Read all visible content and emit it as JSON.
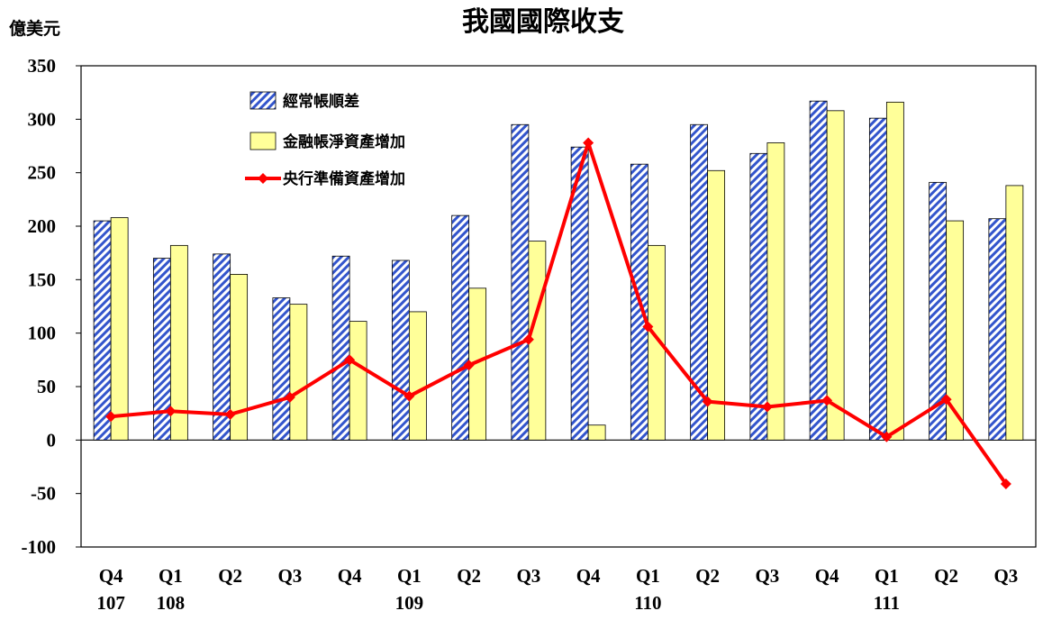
{
  "chart_data": {
    "type": "bar",
    "title": "我國國際收支",
    "unit_label": "億美元",
    "ylim": [
      -100,
      350
    ],
    "yticks": [
      350,
      300,
      250,
      200,
      150,
      100,
      50,
      0,
      -50,
      -100
    ],
    "categories": [
      "Q4",
      "Q1",
      "Q2",
      "Q3",
      "Q4",
      "Q1",
      "Q2",
      "Q3",
      "Q4",
      "Q1",
      "Q2",
      "Q3",
      "Q4",
      "Q1",
      "Q2",
      "Q3"
    ],
    "year_labels": [
      "107",
      "108",
      "",
      "",
      "",
      "109",
      "",
      "",
      "",
      "110",
      "",
      "",
      "",
      "111",
      "",
      ""
    ],
    "legend_position": "top-left",
    "grid": false,
    "series": [
      {
        "name": "經常帳順差",
        "kind": "bar",
        "pattern": "hatched",
        "color": "#3355cc",
        "values": [
          205,
          170,
          174,
          133,
          172,
          168,
          210,
          295,
          274,
          258,
          295,
          268,
          317,
          301,
          241,
          207
        ]
      },
      {
        "name": "金融帳淨資產增加",
        "kind": "bar",
        "pattern": "solid",
        "color": "#ffff99",
        "values": [
          208,
          182,
          155,
          127,
          111,
          120,
          142,
          186,
          14,
          182,
          252,
          278,
          308,
          316,
          205,
          238
        ]
      },
      {
        "name": "央行準備資產增加",
        "kind": "line",
        "marker": "diamond",
        "color": "#ff0000",
        "values": [
          22,
          27,
          24,
          40,
          75,
          41,
          70,
          94,
          278,
          106,
          36,
          31,
          37,
          3,
          38,
          -41
        ]
      }
    ]
  }
}
